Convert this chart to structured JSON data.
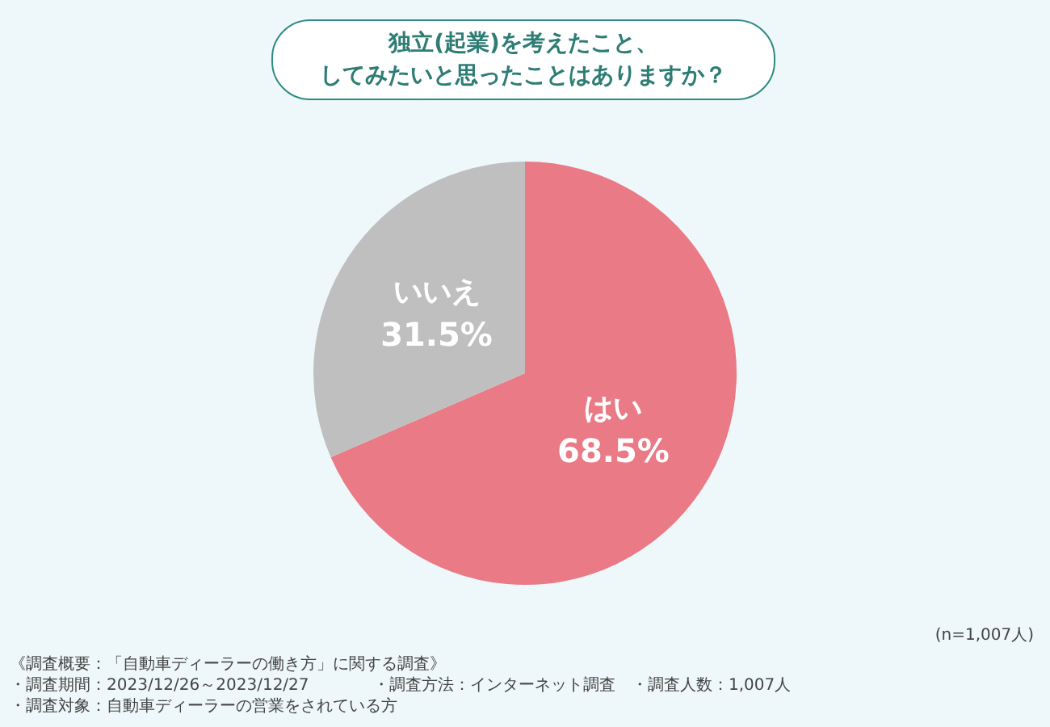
{
  "chart_data": {
    "type": "pie",
    "title": "独立(起業)を考えたこと、してみたいと思ったことはありますか？",
    "categories": [
      "はい",
      "いいえ"
    ],
    "values": [
      68.5,
      31.5
    ],
    "colors": [
      "#e97a86",
      "#bfbfbf"
    ],
    "value_labels": [
      "68.5%",
      "31.5%"
    ],
    "legend": false,
    "annotations": [
      "(n=1,007人)",
      "《調査概要：「自動車ディーラーの働き方」に関する調査》",
      "・調査期間：2023/12/26～2023/12/27",
      "・調査方法：インターネット調査",
      "・調査人数：1,007人",
      "・調査対象：自動車ディーラーの営業をされている方"
    ]
  }
}
